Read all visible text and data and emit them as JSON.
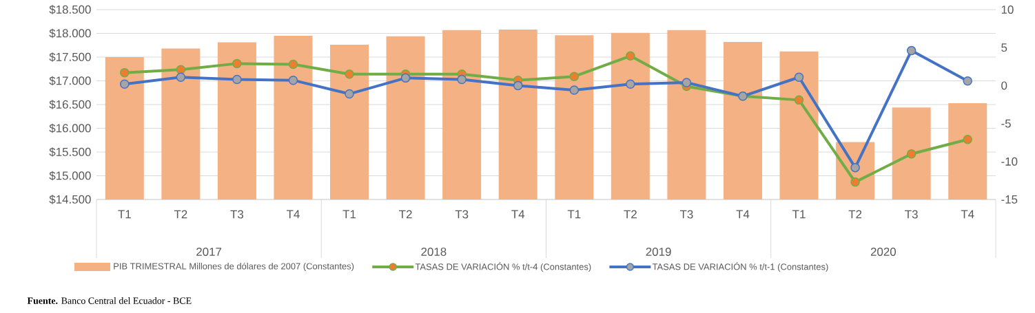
{
  "chart_data": {
    "type": "bar",
    "categories": [
      "T1",
      "T2",
      "T3",
      "T4",
      "T1",
      "T2",
      "T3",
      "T4",
      "T1",
      "T2",
      "T3",
      "T4",
      "T1",
      "T2",
      "T3",
      "T4"
    ],
    "series": [
      {
        "name": "PIB TRIMESTRAL  Millones de dólares de 2007 (Constantes)",
        "color": "#f4b183",
        "values": [
          17500,
          17680,
          17810,
          17950,
          17760,
          17940,
          18070,
          18080,
          17960,
          18010,
          18070,
          17820,
          17620,
          15710,
          16440,
          16530
        ]
      },
      {
        "name": "TASAS DE VARIACIÓN % t/t-4 (Constantes)",
        "type": "line",
        "axis": "y2",
        "color": "#70ad47",
        "values": [
          1.7,
          2.1,
          2.9,
          2.8,
          1.5,
          1.5,
          1.5,
          0.7,
          1.2,
          3.9,
          -0.1,
          -1.4,
          -1.9,
          -12.7,
          -9.0,
          -7.1
        ]
      },
      {
        "name": "TASAS DE VARIACIÓN % t/t-1 (Constantes)",
        "type": "line",
        "axis": "y2",
        "color": "#4472c4",
        "values": [
          0.2,
          1.1,
          0.8,
          0.7,
          -1.1,
          1.0,
          0.8,
          0.0,
          -0.6,
          0.2,
          0.4,
          -1.4,
          1.1,
          -10.8,
          4.6,
          0.6
        ]
      }
    ],
    "ylim": [
      14500,
      18500
    ],
    "yticks": [
      {
        "value": 14500,
        "label": "$14.500"
      },
      {
        "value": 15000,
        "label": "$15.000"
      },
      {
        "value": 15500,
        "label": "$15.500"
      },
      {
        "value": 16000,
        "label": "$16.000"
      },
      {
        "value": 16500,
        "label": "$16.500"
      },
      {
        "value": 17000,
        "label": "$17.000"
      },
      {
        "value": 17500,
        "label": "$17.500"
      },
      {
        "value": 18000,
        "label": "$18.000"
      },
      {
        "value": 18500,
        "label": "$18.500"
      }
    ],
    "y2lim": [
      -15,
      10
    ],
    "y2ticks": [
      -15,
      -10,
      -5,
      0,
      5,
      10
    ],
    "grid": "y",
    "legend": "bottom",
    "marker": "circle",
    "annotations": [
      "2017",
      "2018",
      "2019",
      "2020",
      "**Fuente.** Banco Central del Ecuador - BCE"
    ]
  }
}
